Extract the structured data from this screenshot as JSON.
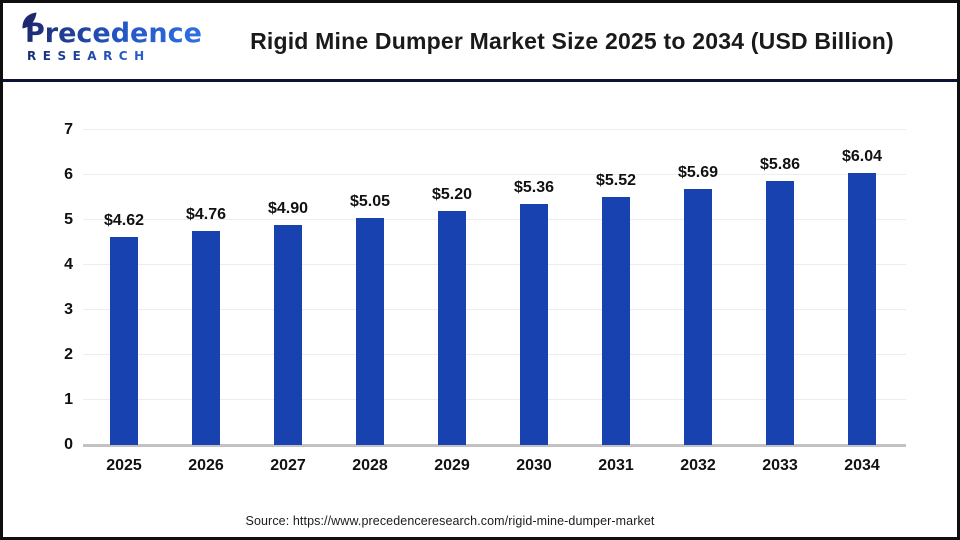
{
  "header": {
    "logo": {
      "line1": "Precedence",
      "line2": "RESEARCH"
    },
    "title": "Rigid Mine Dumper Market Size 2025 to 2034 (USD Billion)"
  },
  "chart_data": {
    "type": "bar",
    "title": "Rigid Mine Dumper Market Size 2025 to 2034 (USD Billion)",
    "categories": [
      "2025",
      "2026",
      "2027",
      "2028",
      "2029",
      "2030",
      "2031",
      "2032",
      "2033",
      "2034"
    ],
    "values": [
      4.62,
      4.76,
      4.9,
      5.05,
      5.2,
      5.36,
      5.52,
      5.69,
      5.86,
      6.04
    ],
    "value_labels": [
      "$4.62",
      "$4.76",
      "$4.90",
      "$5.05",
      "$5.20",
      "$5.36",
      "$5.52",
      "$5.69",
      "$5.86",
      "$6.04"
    ],
    "xlabel": "",
    "ylabel": "",
    "ylim": [
      0,
      7
    ],
    "yticks": [
      0,
      1,
      2,
      3,
      4,
      5,
      6,
      7
    ],
    "grid": "horizontal",
    "legend": "none",
    "bar_color": "#1742af"
  },
  "footer": {
    "source": "Source: https://www.precedenceresearch.com/rigid-mine-dumper-market"
  },
  "colors": {
    "bar": "#1742af",
    "divider": "#0c1138",
    "grid": "#ededed",
    "baseline": "#c2c2c2",
    "logo-dark": "#1d2a6e",
    "logo-light": "#2e6fe0"
  }
}
